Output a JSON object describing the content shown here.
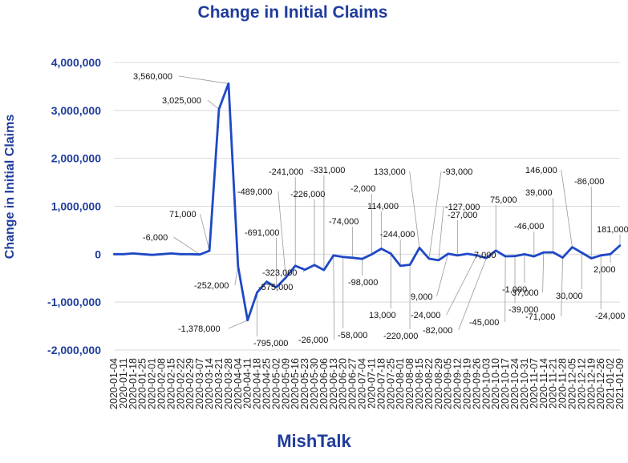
{
  "chart_data": {
    "type": "line",
    "title": "Change in Initial Claims",
    "ylabel": "Change in Initial Claims",
    "xlabel": "",
    "brand": "MishTalk",
    "ylim": [
      -2000000,
      4000000
    ],
    "yticks": [
      4000000,
      3000000,
      2000000,
      1000000,
      0,
      -1000000,
      -2000000
    ],
    "ytick_labels": [
      "4,000,000",
      "3,000,000",
      "2,000,000",
      "1,000,000",
      "0",
      "-1,000,000",
      "-2,000,000"
    ],
    "grid": true,
    "legend": "none",
    "line_color": "#1f48c6",
    "x": [
      "2020-01-04",
      "2020-01-11",
      "2020-01-18",
      "2020-01-25",
      "2020-02-01",
      "2020-02-08",
      "2020-02-15",
      "2020-02-22",
      "2020-02-29",
      "2020-03-07",
      "2020-03-14",
      "2020-03-21",
      "2020-03-28",
      "2020-04-04",
      "2020-04-11",
      "2020-04-18",
      "2020-04-25",
      "2020-05-02",
      "2020-05-09",
      "2020-05-16",
      "2020-05-23",
      "2020-05-30",
      "2020-06-06",
      "2020-06-13",
      "2020-06-20",
      "2020-06-27",
      "2020-07-04",
      "2020-07-11",
      "2020-07-18",
      "2020-07-25",
      "2020-08-01",
      "2020-08-08",
      "2020-08-15",
      "2020-08-22",
      "2020-08-29",
      "2020-09-05",
      "2020-09-12",
      "2020-09-19",
      "2020-09-26",
      "2020-10-03",
      "2020-10-10",
      "2020-10-17",
      "2020-10-24",
      "2020-10-31",
      "2020-11-07",
      "2020-11-14",
      "2020-11-21",
      "2020-11-28",
      "2020-12-05",
      "2020-12-12",
      "2020-12-19",
      "2020-12-26",
      "2021-01-02",
      "2021-01-09"
    ],
    "x_tick_labels": [
      "2020-01-04",
      "2020-01-11",
      "2020-01-18",
      "2020-01-25",
      "2020-02-01",
      "2020-02-08",
      "2020-02-15",
      "2020-02-22",
      "2020-02-29",
      "2020-03-07",
      "2020-03-14",
      "2020-03-21",
      "2020-03-28",
      "2020-04-04",
      "2020-04-11",
      "2020-04-18",
      "2020-04-25",
      "2020-05-02",
      "2020-05-09",
      "2020-05-16",
      "2020-05-23",
      "2020-05-30",
      "2020-06-06",
      "2020-06-13",
      "2020-06-20",
      "2020-06-27",
      "2020-07-04",
      "2020-07-11",
      "2020-07-18",
      "2020-07-25",
      "2020-08-01",
      "2020-08-08",
      "2020-08-15",
      "2020-08-22",
      "2020-08-29",
      "2020-09-05",
      "2020-09-12",
      "2020-09-19",
      "2020-09-26",
      "2020-10-03",
      "2020-10-10",
      "2020-10-17",
      "2020-10-24",
      "2020-10-31",
      "2020-11-07",
      "2020-11-14",
      "2020-11-21",
      "2020-11-28",
      "2020-12-05",
      "2020-12-12",
      "2020-12-19",
      "2020-12-26",
      "2021-01-02",
      "2021-01-09"
    ],
    "series": [
      {
        "values": [
          0,
          0,
          15000,
          0,
          -15000,
          0,
          15000,
          0,
          0,
          -6000,
          71000,
          3025000,
          3560000,
          -252000,
          -1378000,
          -795000,
          -575000,
          -691000,
          -489000,
          -241000,
          -323000,
          -226000,
          -331000,
          -26000,
          -58000,
          -74000,
          -98000,
          -2000,
          114000,
          13000,
          -244000,
          -220000,
          133000,
          -93000,
          -127000,
          9000,
          -27000,
          7000,
          -24000,
          -82000,
          75000,
          -45000,
          -39000,
          -1000,
          -46000,
          37000,
          39000,
          -71000,
          146000,
          30000,
          -86000,
          -24000,
          2000,
          181000
        ]
      }
    ],
    "data_labels": [
      {
        "i": 9,
        "text": "-6,000"
      },
      {
        "i": 10,
        "text": "71,000"
      },
      {
        "i": 11,
        "text": "3,025,000"
      },
      {
        "i": 12,
        "text": "3,560,000"
      },
      {
        "i": 13,
        "text": "-252,000"
      },
      {
        "i": 14,
        "text": "-1,378,000"
      },
      {
        "i": 15,
        "text": "-795,000"
      },
      {
        "i": 16,
        "text": "-575,000"
      },
      {
        "i": 17,
        "text": "-691,000"
      },
      {
        "i": 18,
        "text": "-489,000"
      },
      {
        "i": 19,
        "text": "-241,000"
      },
      {
        "i": 20,
        "text": "-323,000"
      },
      {
        "i": 21,
        "text": "-226,000"
      },
      {
        "i": 22,
        "text": "-331,000"
      },
      {
        "i": 23,
        "text": "-26,000"
      },
      {
        "i": 24,
        "text": "-58,000"
      },
      {
        "i": 25,
        "text": "-74,000"
      },
      {
        "i": 26,
        "text": "-98,000"
      },
      {
        "i": 27,
        "text": "-2,000"
      },
      {
        "i": 28,
        "text": "114,000"
      },
      {
        "i": 29,
        "text": "13,000"
      },
      {
        "i": 30,
        "text": "-244,000"
      },
      {
        "i": 31,
        "text": "-220,000"
      },
      {
        "i": 32,
        "text": "133,000"
      },
      {
        "i": 33,
        "text": "-93,000"
      },
      {
        "i": 34,
        "text": "-127,000"
      },
      {
        "i": 35,
        "text": "9,000"
      },
      {
        "i": 36,
        "text": "-27,000"
      },
      {
        "i": 37,
        "text": "7,000"
      },
      {
        "i": 38,
        "text": "-24,000"
      },
      {
        "i": 39,
        "text": "-82,000"
      },
      {
        "i": 40,
        "text": "75,000"
      },
      {
        "i": 41,
        "text": "-45,000"
      },
      {
        "i": 42,
        "text": "-39,000"
      },
      {
        "i": 43,
        "text": "-1,000"
      },
      {
        "i": 44,
        "text": "-46,000"
      },
      {
        "i": 45,
        "text": "37,000"
      },
      {
        "i": 46,
        "text": "39,000"
      },
      {
        "i": 47,
        "text": "-71,000"
      },
      {
        "i": 48,
        "text": "146,000"
      },
      {
        "i": 49,
        "text": "30,000"
      },
      {
        "i": 50,
        "text": "-86,000"
      },
      {
        "i": 51,
        "text": "-24,000"
      },
      {
        "i": 52,
        "text": "2,000"
      },
      {
        "i": 53,
        "text": "181,000"
      }
    ]
  }
}
